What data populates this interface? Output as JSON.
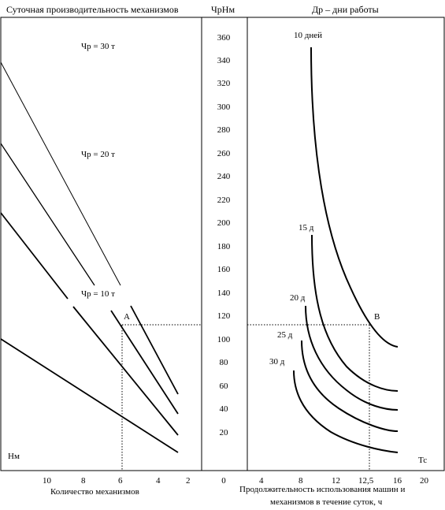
{
  "headers": {
    "left": "Суточная производительность механизмов",
    "middle": "ЧрНм",
    "right": "Др – дни работы"
  },
  "captions": {
    "left_bottom": "Количество механизмов",
    "right_bottom_line1": "Продолжительность использования машин и",
    "right_bottom_line2": "механизмов в течение суток, ч"
  },
  "left_panel": {
    "x_ticks": [
      "10",
      "8",
      "6",
      "4",
      "2"
    ],
    "line_labels": [
      "Чр = 30 т",
      "Чр = 20 т",
      "Чр = 10 т"
    ],
    "point_label": "А",
    "corner_label": "Нм"
  },
  "middle_scale": {
    "ticks": [
      "360",
      "340",
      "320",
      "300",
      "280",
      "260",
      "240",
      "220",
      "200",
      "180",
      "160",
      "140",
      "120",
      "100",
      "80",
      "60",
      "40",
      "20",
      "0"
    ]
  },
  "right_panel": {
    "x_ticks": [
      "4",
      "8",
      "12",
      "12,5",
      "16",
      "20"
    ],
    "curve_labels": [
      "10 дней",
      "15 д",
      "20 д",
      "25 д",
      "30 д"
    ],
    "point_label": "В",
    "corner_label": "Тс"
  }
}
